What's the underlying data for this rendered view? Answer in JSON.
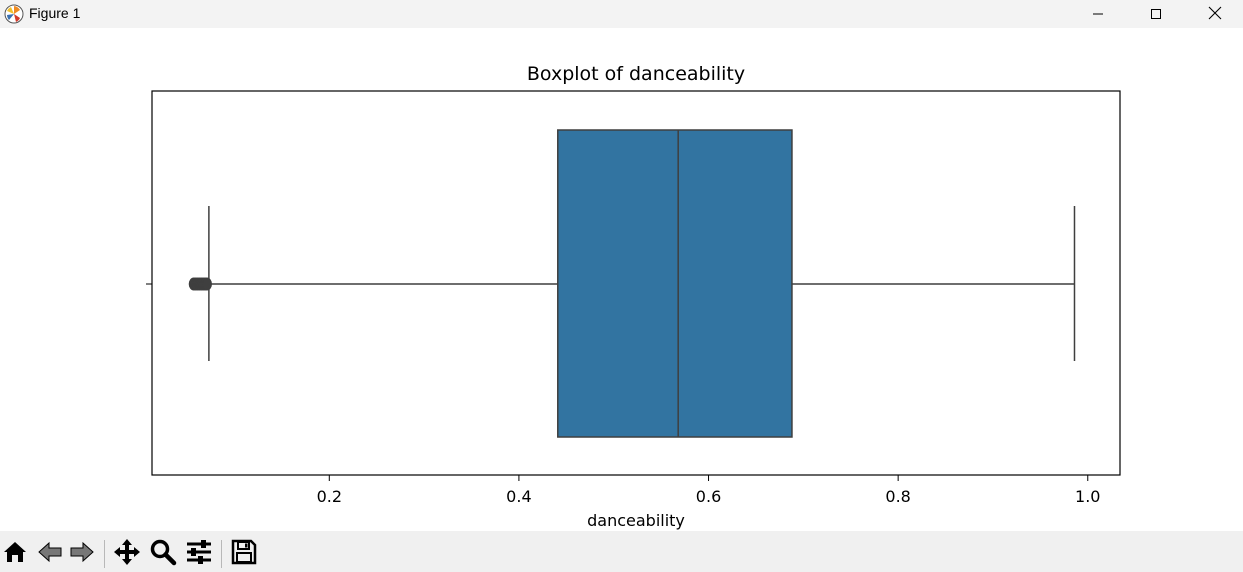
{
  "window": {
    "title": "Figure 1",
    "controls": {
      "minimize": "minimize-icon",
      "maximize": "maximize-icon",
      "close": "close-icon"
    }
  },
  "toolbar": {
    "buttons": [
      {
        "name": "home",
        "icon": "home-icon"
      },
      {
        "name": "back",
        "icon": "back-arrow-icon"
      },
      {
        "name": "forward",
        "icon": "forward-arrow-icon"
      },
      {
        "name": "pan",
        "icon": "move-icon"
      },
      {
        "name": "zoom",
        "icon": "magnifier-icon"
      },
      {
        "name": "configure-subplots",
        "icon": "sliders-icon"
      },
      {
        "name": "save",
        "icon": "floppy-disk-icon"
      }
    ]
  },
  "chart_data": {
    "type": "box",
    "title": "Boxplot of danceability",
    "xlabel": "danceability",
    "ylabel": "",
    "xlim": [
      0.013,
      1.034
    ],
    "xticks": [
      0.2,
      0.4,
      0.6,
      0.8,
      1.0
    ],
    "xtick_labels": [
      "0.2",
      "0.4",
      "0.6",
      "0.8",
      "1.0"
    ],
    "grid": false,
    "orientation": "horizontal",
    "box": {
      "whisker_low": 0.073,
      "q1": 0.441,
      "median": 0.568,
      "q3": 0.688,
      "whisker_high": 0.986
    },
    "outliers": [
      0.057,
      0.059,
      0.061,
      0.063,
      0.065,
      0.067,
      0.069,
      0.071
    ],
    "colors": {
      "box_fill": "#3274a1",
      "line": "#3f3f3f"
    }
  }
}
